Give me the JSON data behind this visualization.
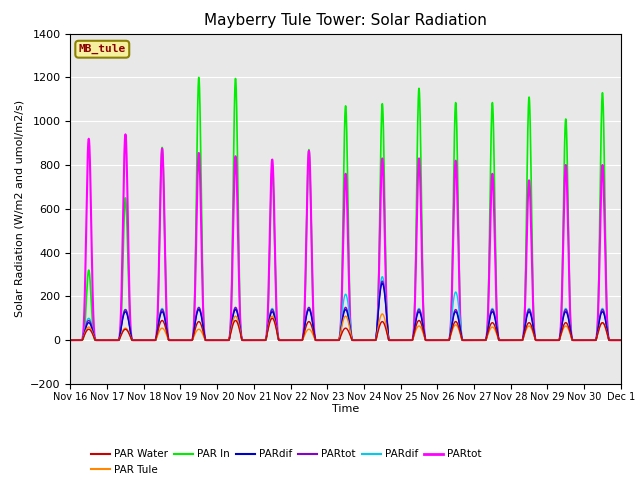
{
  "title": "Mayberry Tule Tower: Solar Radiation",
  "ylabel": "Solar Radiation (W/m2 and umol/m2/s)",
  "xlabel": "Time",
  "ylim": [
    -200,
    1400
  ],
  "xlim": [
    0,
    15
  ],
  "yticks": [
    -200,
    0,
    200,
    400,
    600,
    800,
    1000,
    1200,
    1400
  ],
  "xtick_labels": [
    "Nov 16",
    "Nov 17",
    "Nov 18",
    "Nov 19",
    "Nov 20",
    "Nov 21",
    "Nov 22",
    "Nov 23",
    "Nov 24",
    "Nov 25",
    "Nov 26",
    "Nov 27",
    "Nov 28",
    "Nov 29",
    "Nov 30",
    "Dec 1"
  ],
  "xtick_positions": [
    0,
    1,
    2,
    3,
    4,
    5,
    6,
    7,
    8,
    9,
    10,
    11,
    12,
    13,
    14,
    15
  ],
  "station_label": "MB_tule",
  "background_color": "#e8e8e8",
  "lines": {
    "PAR Water": {
      "color": "#cc0000",
      "lw": 1.0
    },
    "PAR Tule": {
      "color": "#ff8800",
      "lw": 1.0
    },
    "PAR In": {
      "color": "#00ee00",
      "lw": 1.2
    },
    "PARdif": {
      "color": "#0000cc",
      "lw": 1.0
    },
    "PARtot": {
      "color": "#8800cc",
      "lw": 1.0
    },
    "PARdif2": {
      "color": "#00ccee",
      "lw": 1.0
    },
    "PARtot2": {
      "color": "#ff00ff",
      "lw": 1.5
    }
  },
  "par_water_peaks": [
    50,
    50,
    90,
    85,
    90,
    100,
    85,
    55,
    85,
    90,
    85,
    80,
    80,
    80,
    80
  ],
  "par_tule_peaks": [
    60,
    55,
    55,
    50,
    110,
    110,
    50,
    110,
    120,
    65,
    70,
    60,
    65,
    65,
    80
  ],
  "par_in_peaks": [
    320,
    650,
    880,
    1200,
    1195,
    770,
    870,
    1070,
    1080,
    1150,
    1085,
    1085,
    1110,
    1010,
    1130
  ],
  "pardif_peaks": [
    80,
    130,
    130,
    140,
    140,
    130,
    140,
    140,
    260,
    130,
    130,
    130,
    130,
    130,
    130
  ],
  "partot_peaks": [
    90,
    140,
    140,
    150,
    150,
    140,
    150,
    150,
    270,
    140,
    140,
    140,
    140,
    140,
    140
  ],
  "pardif2_peaks": [
    100,
    140,
    145,
    145,
    145,
    145,
    145,
    210,
    290,
    145,
    220,
    145,
    145,
    145,
    145
  ],
  "partot2_peaks": [
    920,
    940,
    875,
    855,
    840,
    825,
    865,
    760,
    830,
    830,
    820,
    760,
    730,
    800,
    800
  ]
}
